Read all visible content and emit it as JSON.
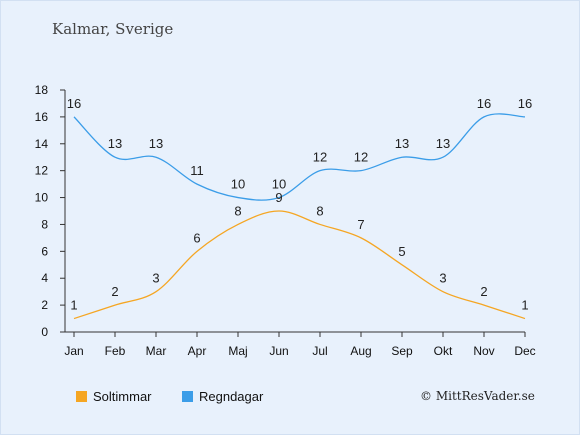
{
  "location": "Kalmar, Sverige",
  "credit": "© MittResVader.se",
  "chart_data": {
    "type": "line",
    "categories": [
      "Jan",
      "Feb",
      "Mar",
      "Apr",
      "Maj",
      "Jun",
      "Jul",
      "Aug",
      "Sep",
      "Okt",
      "Nov",
      "Dec"
    ],
    "ylim": [
      0,
      18
    ],
    "yticks": [
      "0",
      "2",
      "4",
      "6",
      "8",
      "10",
      "12",
      "14",
      "16",
      "18"
    ],
    "grid": false,
    "legend_position": "bottom-left",
    "series": [
      {
        "name": "Soltimmar",
        "color": "#f5a623",
        "values": [
          1,
          2,
          3,
          6,
          8,
          9,
          8,
          7,
          5,
          3,
          2,
          1
        ]
      },
      {
        "name": "Regndagar",
        "color": "#3b9de8",
        "values": [
          16,
          13,
          13,
          11,
          10,
          10,
          12,
          12,
          13,
          13,
          16,
          16
        ]
      }
    ]
  }
}
